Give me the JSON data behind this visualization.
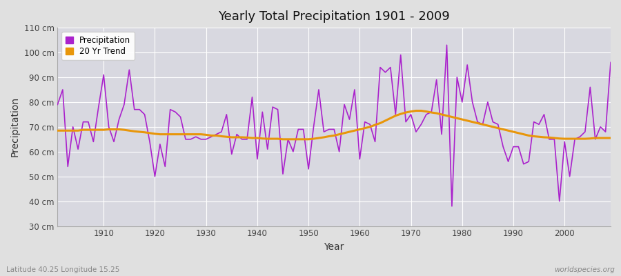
{
  "title": "Yearly Total Precipitation 1901 - 2009",
  "xlabel": "Year",
  "ylabel": "Precipitation",
  "subtitle_left": "Latitude 40.25 Longitude 15.25",
  "subtitle_right": "worldspecies.org",
  "ylim": [
    30,
    110
  ],
  "yticks": [
    30,
    40,
    50,
    60,
    70,
    80,
    90,
    100,
    110
  ],
  "ytick_labels": [
    "30 cm",
    "40 cm",
    "50 cm",
    "60 cm",
    "70 cm",
    "80 cm",
    "90 cm",
    "100 cm",
    "110 cm"
  ],
  "xlim": [
    1901,
    2009
  ],
  "xticks": [
    1910,
    1920,
    1930,
    1940,
    1950,
    1960,
    1970,
    1980,
    1990,
    2000
  ],
  "precip_color": "#aa22cc",
  "trend_color": "#e8960a",
  "fig_bg_color": "#e0e0e0",
  "ax_bg_color": "#d8d8e0",
  "legend_labels": [
    "Precipitation",
    "20 Yr Trend"
  ],
  "years": [
    1901,
    1902,
    1903,
    1904,
    1905,
    1906,
    1907,
    1908,
    1909,
    1910,
    1911,
    1912,
    1913,
    1914,
    1915,
    1916,
    1917,
    1918,
    1919,
    1920,
    1921,
    1922,
    1923,
    1924,
    1925,
    1926,
    1927,
    1928,
    1929,
    1930,
    1931,
    1932,
    1933,
    1934,
    1935,
    1936,
    1937,
    1938,
    1939,
    1940,
    1941,
    1942,
    1943,
    1944,
    1945,
    1946,
    1947,
    1948,
    1949,
    1950,
    1951,
    1952,
    1953,
    1954,
    1955,
    1956,
    1957,
    1958,
    1959,
    1960,
    1961,
    1962,
    1963,
    1964,
    1965,
    1966,
    1967,
    1968,
    1969,
    1970,
    1971,
    1972,
    1973,
    1974,
    1975,
    1976,
    1977,
    1978,
    1979,
    1980,
    1981,
    1982,
    1983,
    1984,
    1985,
    1986,
    1987,
    1988,
    1989,
    1990,
    1991,
    1992,
    1993,
    1994,
    1995,
    1996,
    1997,
    1998,
    1999,
    2000,
    2001,
    2002,
    2003,
    2004,
    2005,
    2006,
    2007,
    2008,
    2009
  ],
  "precip": [
    79,
    85,
    54,
    70,
    61,
    72,
    72,
    64,
    78,
    91,
    70,
    64,
    73,
    79,
    93,
    77,
    77,
    75,
    64,
    50,
    63,
    54,
    77,
    76,
    74,
    65,
    65,
    66,
    65,
    65,
    66,
    67,
    68,
    75,
    59,
    67,
    65,
    65,
    82,
    57,
    76,
    61,
    78,
    77,
    51,
    65,
    60,
    69,
    69,
    53,
    70,
    85,
    68,
    69,
    69,
    60,
    79,
    73,
    85,
    57,
    72,
    71,
    64,
    94,
    92,
    94,
    75,
    99,
    72,
    75,
    68,
    71,
    75,
    76,
    89,
    67,
    103,
    38,
    90,
    80,
    95,
    80,
    72,
    71,
    80,
    72,
    71,
    62,
    56,
    62,
    62,
    55,
    56,
    72,
    71,
    75,
    65,
    65,
    40,
    64,
    50,
    65,
    66,
    68,
    86,
    65,
    70,
    68,
    96
  ],
  "trend": [
    68.5,
    68.5,
    68.5,
    68.5,
    68.5,
    68.8,
    68.8,
    68.8,
    68.8,
    68.8,
    69.0,
    69.0,
    69.0,
    68.8,
    68.5,
    68.2,
    68.0,
    67.8,
    67.5,
    67.2,
    67.0,
    67.0,
    67.0,
    67.0,
    67.0,
    67.0,
    67.0,
    67.0,
    67.0,
    66.8,
    66.5,
    66.5,
    66.2,
    66.0,
    65.8,
    65.8,
    65.8,
    65.7,
    65.5,
    65.5,
    65.3,
    65.2,
    65.2,
    65.2,
    65.0,
    65.0,
    65.0,
    65.0,
    65.0,
    65.0,
    65.2,
    65.5,
    65.8,
    66.2,
    66.5,
    67.0,
    67.5,
    68.0,
    68.5,
    69.0,
    69.5,
    70.0,
    70.8,
    71.5,
    72.5,
    73.5,
    74.5,
    75.2,
    75.8,
    76.2,
    76.5,
    76.5,
    76.2,
    75.8,
    75.5,
    75.0,
    74.5,
    74.0,
    73.5,
    73.0,
    72.5,
    72.0,
    71.5,
    71.0,
    70.5,
    70.0,
    69.5,
    69.0,
    68.5,
    68.0,
    67.5,
    67.0,
    66.5,
    66.2,
    66.0,
    65.8,
    65.7,
    65.5,
    65.3,
    65.2,
    65.2,
    65.2,
    65.2,
    65.2,
    65.3,
    65.5,
    65.5,
    65.5,
    65.5
  ]
}
